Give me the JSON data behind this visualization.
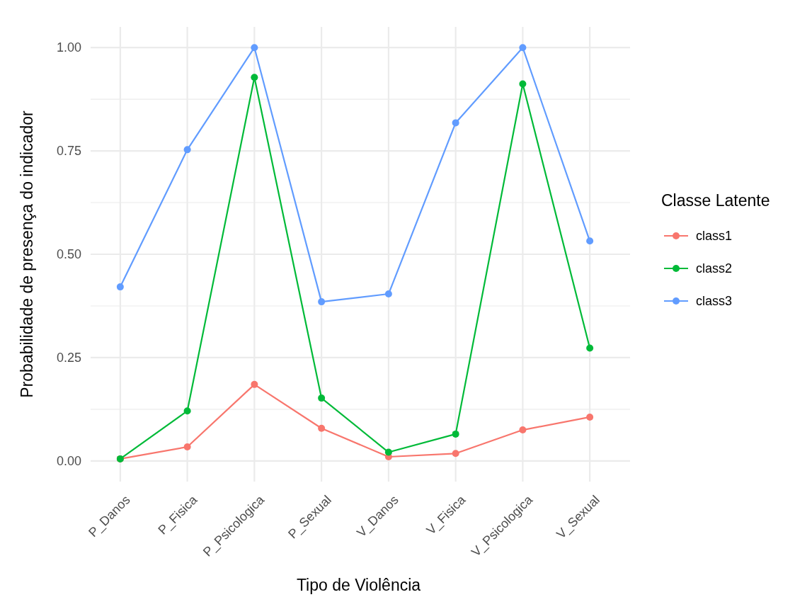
{
  "chart_data": {
    "type": "line",
    "xlabel": "Tipo de Violência",
    "ylabel": "Probabilidade de presença do indicador",
    "legend_title": "Classe Latente",
    "categories": [
      "P_Danos",
      "P_Fisica",
      "P_Psicologica",
      "P_Sexual",
      "V_Danos",
      "V_Fisica",
      "V_Psicologica",
      "V_Sexual"
    ],
    "series": [
      {
        "name": "class1",
        "color": "#f8766d",
        "values": [
          0.005,
          0.034,
          0.185,
          0.079,
          0.01,
          0.018,
          0.075,
          0.106
        ]
      },
      {
        "name": "class2",
        "color": "#00ba38",
        "values": [
          0.005,
          0.121,
          0.928,
          0.152,
          0.021,
          0.065,
          0.912,
          0.273
        ]
      },
      {
        "name": "class3",
        "color": "#619cff",
        "values": [
          0.421,
          0.753,
          1.0,
          0.385,
          0.404,
          0.818,
          1.0,
          0.532
        ]
      }
    ],
    "ylim": [
      -0.05,
      1.05
    ],
    "yticks": [
      {
        "value": 0,
        "label": "0.00"
      },
      {
        "value": 0.125,
        "label": null
      },
      {
        "value": 0.25,
        "label": "0.25"
      },
      {
        "value": 0.375,
        "label": null
      },
      {
        "value": 0.5,
        "label": "0.50"
      },
      {
        "value": 0.625,
        "label": null
      },
      {
        "value": 0.75,
        "label": "0.75"
      },
      {
        "value": 0.875,
        "label": null
      },
      {
        "value": 1,
        "label": "1.00"
      }
    ],
    "grid": true,
    "legend": "right",
    "marker": "circle",
    "line_style": "solid"
  }
}
